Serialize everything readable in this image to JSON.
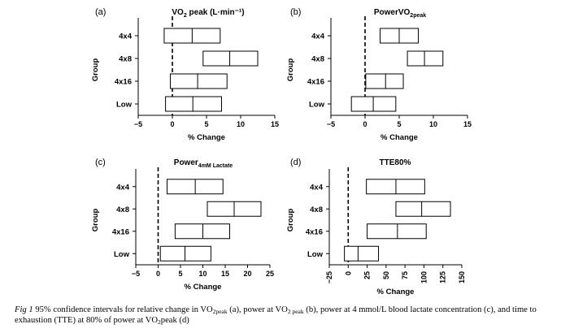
{
  "chart_data": [
    {
      "type": "interval",
      "panel_label": "(a)",
      "title": "VO",
      "title_sub": "2",
      "title_rest": " peak (L·min⁻¹)",
      "xlabel": "% Change",
      "ylabel": "Group",
      "xlim": [
        -5,
        15
      ],
      "xticks": [
        "−5",
        "0",
        "5",
        "10",
        "15"
      ],
      "xtick_values": [
        -5,
        0,
        5,
        10,
        15
      ],
      "reference_line_x": 0,
      "categories": [
        "4x4",
        "4x8",
        "4x16",
        "Low"
      ],
      "lower": [
        -1.2,
        4.5,
        -0.3,
        -1.0
      ],
      "mean": [
        2.9,
        8.4,
        3.7,
        3.0
      ],
      "upper": [
        7.0,
        12.5,
        8.0,
        7.2
      ]
    },
    {
      "type": "interval",
      "panel_label": "(b)",
      "title": "PowerVO",
      "title_sub": "2peak",
      "title_rest": "",
      "xlabel": "% Change",
      "ylabel": "Group",
      "xlim": [
        -5,
        15
      ],
      "xticks": [
        "−5",
        "0",
        "5",
        "10",
        "15"
      ],
      "xtick_values": [
        -5,
        0,
        5,
        10,
        15
      ],
      "reference_line_x": 0,
      "categories": [
        "4x4",
        "4x8",
        "4x16",
        "Low"
      ],
      "lower": [
        2.2,
        6.2,
        0.1,
        -2.0
      ],
      "mean": [
        5.0,
        8.7,
        3.0,
        1.2
      ],
      "upper": [
        7.8,
        11.4,
        5.6,
        4.5
      ]
    },
    {
      "type": "interval",
      "panel_label": "(c)",
      "title": "Power",
      "title_sub": "4mM Lactate",
      "title_rest": "",
      "xlabel": "% Change",
      "ylabel": "Group",
      "xlim": [
        -5,
        25
      ],
      "xticks": [
        "−5",
        "0",
        "5",
        "10",
        "15",
        "20",
        "25"
      ],
      "xtick_values": [
        -5,
        0,
        5,
        10,
        15,
        20,
        25
      ],
      "reference_line_x": 0,
      "categories": [
        "4x4",
        "4x8",
        "4x16",
        "Low"
      ],
      "lower": [
        2.0,
        11.0,
        3.8,
        0.5
      ],
      "mean": [
        8.3,
        17.0,
        10.0,
        6.0
      ],
      "upper": [
        14.5,
        23.0,
        16.0,
        11.8
      ]
    },
    {
      "type": "interval",
      "panel_label": "(d)",
      "title": "TTE80%",
      "title_sub": "",
      "title_rest": "",
      "xlabel": "% Change",
      "ylabel": "Group",
      "xlim": [
        -25,
        150
      ],
      "xticks": [
        "−25",
        "0",
        "25",
        "50",
        "75",
        "100",
        "125",
        "150"
      ],
      "xtick_values": [
        -25,
        0,
        25,
        50,
        75,
        100,
        125,
        150
      ],
      "reference_line_x": 0,
      "categories": [
        "4x4",
        "4x8",
        "4x16",
        "Low"
      ],
      "lower": [
        24,
        63,
        25,
        -5
      ],
      "mean": [
        63,
        97,
        65,
        13
      ],
      "upper": [
        101,
        135,
        103,
        40
      ]
    }
  ],
  "caption": {
    "fig": "Fig 1",
    "t1": " 95% confidence intervals for relative change in VO",
    "s1": "2peak",
    "t2": " (a), power at VO",
    "s2": "2 peak",
    "t3": " (b), power at 4 mmol/L blood lactate concentration (c), and time to exhaustion (TTE) at 80% of power at VO",
    "s3": "2",
    "t4": "peak (d)"
  }
}
